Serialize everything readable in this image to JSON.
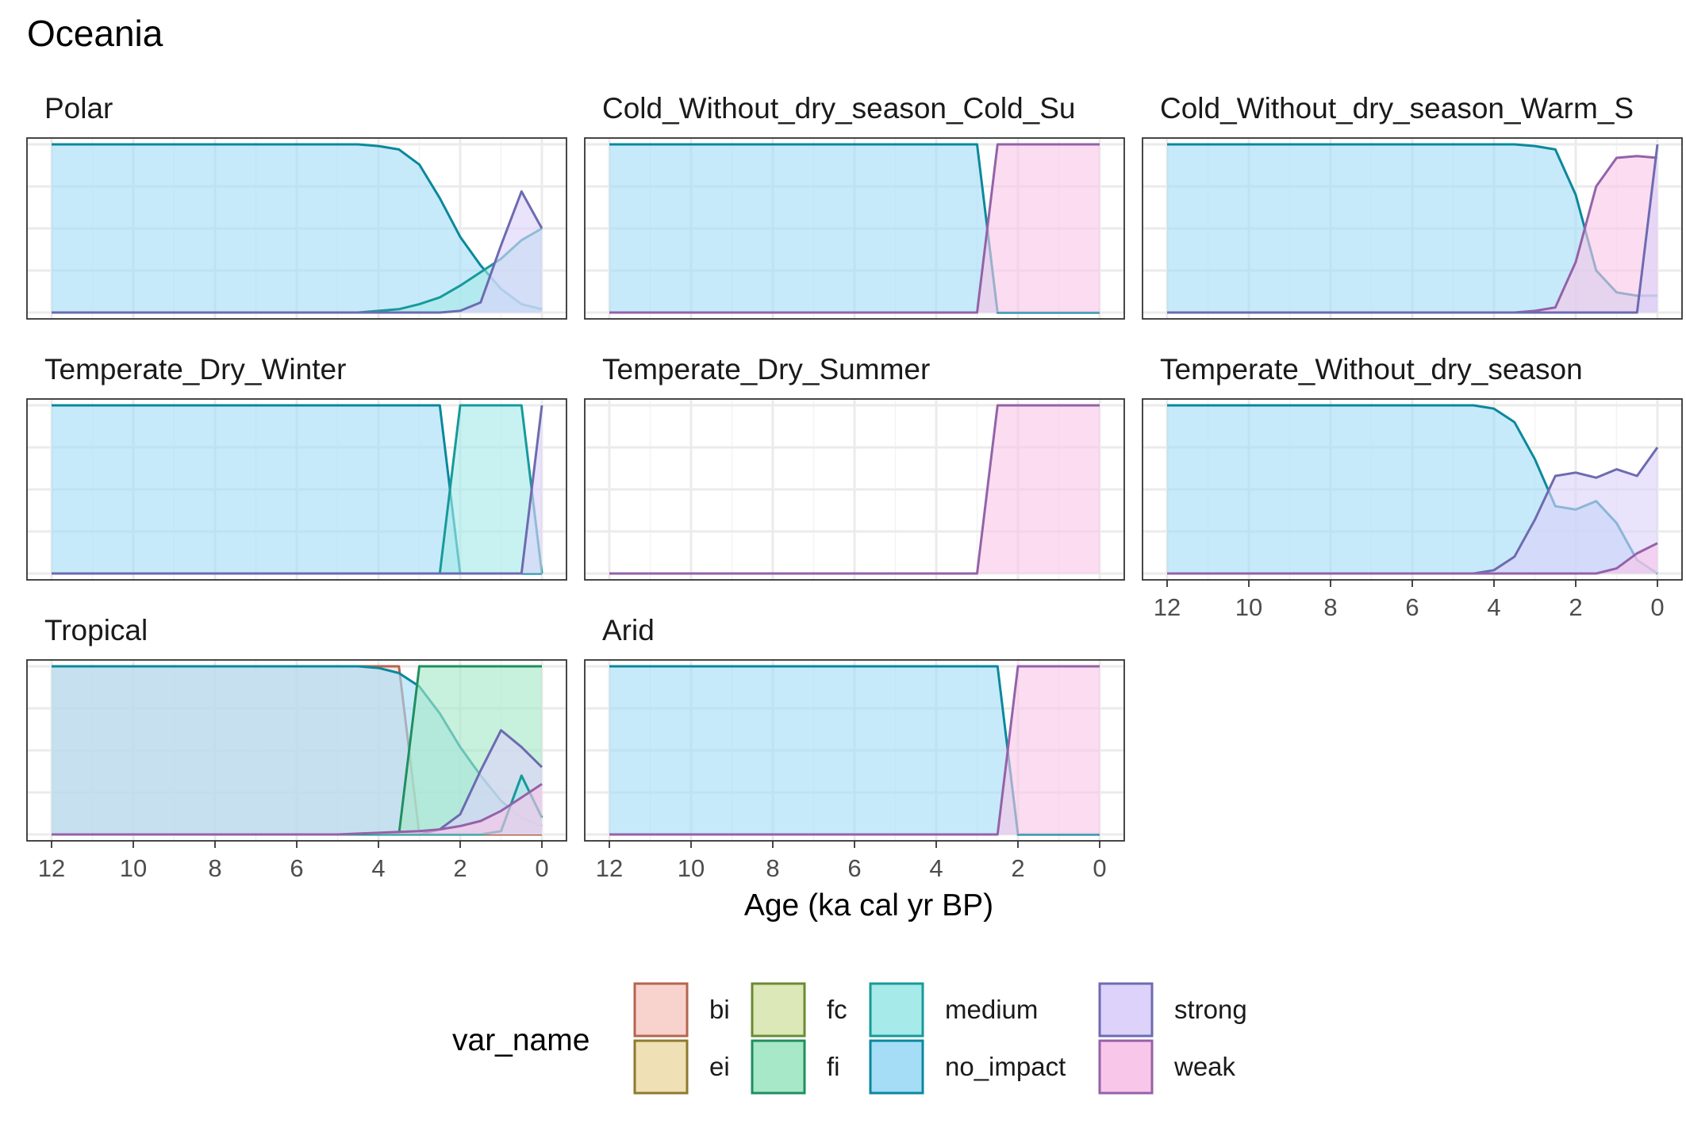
{
  "chart_data": {
    "type": "area",
    "title": "Oceania",
    "xlabel": "Age (ka cal yr BP)",
    "ylabel": "",
    "xlim": [
      12,
      0
    ],
    "ylim": [
      0,
      1
    ],
    "x_ticks": [
      "12",
      "10",
      "8",
      "6",
      "4",
      "2",
      "0"
    ],
    "grid": true,
    "legend": {
      "title": "var_name",
      "position": "bottom",
      "entries": [
        {
          "key": "bi",
          "label": "bi"
        },
        {
          "key": "ei",
          "label": "ei"
        },
        {
          "key": "fc",
          "label": "fc"
        },
        {
          "key": "fi",
          "label": "fi"
        },
        {
          "key": "medium",
          "label": "medium"
        },
        {
          "key": "no_impact",
          "label": "no_impact"
        },
        {
          "key": "strong",
          "label": "strong"
        },
        {
          "key": "weak",
          "label": "weak"
        }
      ]
    },
    "series_colors": {
      "bi": {
        "line": "#B5654E",
        "fill": "#F8D3CE"
      },
      "ei": {
        "line": "#8D7A2E",
        "fill": "#EFE0B5"
      },
      "fc": {
        "line": "#6B8A34",
        "fill": "#DCE8B8"
      },
      "fi": {
        "line": "#1F8F5F",
        "fill": "#A7E8C8"
      },
      "medium": {
        "line": "#179A9A",
        "fill": "#A6EAEA"
      },
      "no_impact": {
        "line": "#0A889C",
        "fill": "#A5DDF7"
      },
      "strong": {
        "line": "#6D6BB0",
        "fill": "#DCD2FA"
      },
      "weak": {
        "line": "#9462A8",
        "fill": "#F8C6E8"
      }
    },
    "x": [
      12,
      11.5,
      11,
      10.5,
      10,
      9.5,
      9,
      8.5,
      8,
      7.5,
      7,
      6.5,
      6,
      5.5,
      5,
      4.5,
      4,
      3.5,
      3,
      2.5,
      2,
      1.5,
      1,
      0.5,
      0
    ],
    "panels": [
      {
        "title": "Polar",
        "x_axis": false,
        "series": [
          {
            "name": "no_impact",
            "values": [
              1,
              1,
              1,
              1,
              1,
              1,
              1,
              1,
              1,
              1,
              1,
              1,
              1,
              1,
              1,
              1,
              0.99,
              0.97,
              0.88,
              0.68,
              0.45,
              0.28,
              0.14,
              0.05,
              0.02
            ]
          },
          {
            "name": "medium",
            "values": [
              0,
              0,
              0,
              0,
              0,
              0,
              0,
              0,
              0,
              0,
              0,
              0,
              0,
              0,
              0,
              0,
              0.01,
              0.02,
              0.05,
              0.09,
              0.16,
              0.24,
              0.32,
              0.43,
              0.5
            ]
          },
          {
            "name": "strong",
            "values": [
              0,
              0,
              0,
              0,
              0,
              0,
              0,
              0,
              0,
              0,
              0,
              0,
              0,
              0,
              0,
              0,
              0,
              0,
              0,
              0,
              0.01,
              0.06,
              0.4,
              0.72,
              0.5
            ]
          }
        ]
      },
      {
        "title": "Cold_Without_dry_season_Cold_Su",
        "x_axis": false,
        "series": [
          {
            "name": "no_impact",
            "values": [
              1,
              1,
              1,
              1,
              1,
              1,
              1,
              1,
              1,
              1,
              1,
              1,
              1,
              1,
              1,
              1,
              1,
              1,
              1,
              0,
              0,
              0,
              0,
              0,
              0
            ]
          },
          {
            "name": "weak",
            "values": [
              0,
              0,
              0,
              0,
              0,
              0,
              0,
              0,
              0,
              0,
              0,
              0,
              0,
              0,
              0,
              0,
              0,
              0,
              0,
              1,
              1,
              1,
              1,
              1,
              1
            ]
          }
        ]
      },
      {
        "title": "Cold_Without_dry_season_Warm_S",
        "x_axis": false,
        "series": [
          {
            "name": "no_impact",
            "values": [
              1,
              1,
              1,
              1,
              1,
              1,
              1,
              1,
              1,
              1,
              1,
              1,
              1,
              1,
              1,
              1,
              1,
              1,
              0.99,
              0.97,
              0.7,
              0.25,
              0.12,
              0.1,
              0.1
            ]
          },
          {
            "name": "weak",
            "values": [
              0,
              0,
              0,
              0,
              0,
              0,
              0,
              0,
              0,
              0,
              0,
              0,
              0,
              0,
              0,
              0,
              0,
              0,
              0.01,
              0.03,
              0.3,
              0.75,
              0.92,
              0.93,
              0.92
            ]
          },
          {
            "name": "strong",
            "values": [
              0,
              0,
              0,
              0,
              0,
              0,
              0,
              0,
              0,
              0,
              0,
              0,
              0,
              0,
              0,
              0,
              0,
              0,
              0,
              0,
              0,
              0,
              0,
              0,
              1
            ]
          }
        ]
      },
      {
        "title": "Temperate_Dry_Winter",
        "x_axis": false,
        "series": [
          {
            "name": "no_impact",
            "values": [
              1,
              1,
              1,
              1,
              1,
              1,
              1,
              1,
              1,
              1,
              1,
              1,
              1,
              1,
              1,
              1,
              1,
              1,
              1,
              1,
              0,
              0,
              0,
              0,
              0
            ]
          },
          {
            "name": "medium",
            "values": [
              0,
              0,
              0,
              0,
              0,
              0,
              0,
              0,
              0,
              0,
              0,
              0,
              0,
              0,
              0,
              0,
              0,
              0,
              0,
              0,
              1,
              1,
              1,
              1,
              0
            ]
          },
          {
            "name": "strong",
            "values": [
              0,
              0,
              0,
              0,
              0,
              0,
              0,
              0,
              0,
              0,
              0,
              0,
              0,
              0,
              0,
              0,
              0,
              0,
              0,
              0,
              0,
              0,
              0,
              0,
              1
            ]
          }
        ]
      },
      {
        "title": "Temperate_Dry_Summer",
        "x_axis": false,
        "series": [
          {
            "name": "weak",
            "values": [
              0,
              0,
              0,
              0,
              0,
              0,
              0,
              0,
              0,
              0,
              0,
              0,
              0,
              0,
              0,
              0,
              0,
              0,
              0,
              1,
              1,
              1,
              1,
              1,
              1
            ]
          }
        ]
      },
      {
        "title": "Temperate_Without_dry_season",
        "x_axis": true,
        "series": [
          {
            "name": "no_impact",
            "values": [
              1,
              1,
              1,
              1,
              1,
              1,
              1,
              1,
              1,
              1,
              1,
              1,
              1,
              1,
              1,
              1,
              0.98,
              0.9,
              0.68,
              0.4,
              0.38,
              0.43,
              0.3,
              0.08,
              0.0
            ]
          },
          {
            "name": "strong",
            "values": [
              0,
              0,
              0,
              0,
              0,
              0,
              0,
              0,
              0,
              0,
              0,
              0,
              0,
              0,
              0,
              0,
              0.02,
              0.1,
              0.32,
              0.58,
              0.6,
              0.57,
              0.62,
              0.58,
              0.75
            ]
          },
          {
            "name": "weak",
            "values": [
              0,
              0,
              0,
              0,
              0,
              0,
              0,
              0,
              0,
              0,
              0,
              0,
              0,
              0,
              0,
              0,
              0,
              0,
              0,
              0,
              0,
              0,
              0.03,
              0.12,
              0.18
            ]
          }
        ]
      },
      {
        "title": "Tropical",
        "x_axis": true,
        "series": [
          {
            "name": "bi",
            "values": [
              1,
              1,
              1,
              1,
              1,
              1,
              1,
              1,
              1,
              1,
              1,
              1,
              1,
              1,
              1,
              1,
              1,
              1,
              0,
              0,
              0,
              0,
              0,
              0,
              0
            ]
          },
          {
            "name": "no_impact",
            "values": [
              1,
              1,
              1,
              1,
              1,
              1,
              1,
              1,
              1,
              1,
              1,
              1,
              1,
              1,
              1,
              1,
              0.99,
              0.96,
              0.88,
              0.72,
              0.52,
              0.35,
              0.2,
              0.1,
              0.05
            ]
          },
          {
            "name": "fi",
            "values": [
              0,
              0,
              0,
              0,
              0,
              0,
              0,
              0,
              0,
              0,
              0,
              0,
              0,
              0,
              0,
              0,
              0,
              0,
              1,
              1,
              1,
              1,
              1,
              1,
              1
            ]
          },
          {
            "name": "strong",
            "values": [
              0,
              0,
              0,
              0,
              0,
              0,
              0,
              0,
              0,
              0,
              0,
              0,
              0,
              0,
              0,
              0,
              0,
              0,
              0,
              0.03,
              0.12,
              0.38,
              0.62,
              0.52,
              0.4
            ]
          },
          {
            "name": "medium",
            "values": [
              0,
              0,
              0,
              0,
              0,
              0,
              0,
              0,
              0,
              0,
              0,
              0,
              0,
              0,
              0,
              0,
              0,
              0,
              0,
              0,
              0,
              0,
              0.02,
              0.35,
              0.1
            ]
          },
          {
            "name": "weak",
            "values": [
              0,
              0,
              0,
              0,
              0,
              0,
              0,
              0,
              0,
              0,
              0,
              0,
              0,
              0,
              0,
              0.005,
              0.01,
              0.015,
              0.02,
              0.03,
              0.05,
              0.08,
              0.14,
              0.22,
              0.3
            ]
          }
        ]
      },
      {
        "title": "Arid",
        "x_axis": true,
        "series": [
          {
            "name": "no_impact",
            "values": [
              1,
              1,
              1,
              1,
              1,
              1,
              1,
              1,
              1,
              1,
              1,
              1,
              1,
              1,
              1,
              1,
              1,
              1,
              1,
              1,
              0,
              0,
              0,
              0,
              0
            ]
          },
          {
            "name": "weak",
            "values": [
              0,
              0,
              0,
              0,
              0,
              0,
              0,
              0,
              0,
              0,
              0,
              0,
              0,
              0,
              0,
              0,
              0,
              0,
              0,
              0,
              1,
              1,
              1,
              1,
              1
            ]
          }
        ]
      }
    ]
  }
}
